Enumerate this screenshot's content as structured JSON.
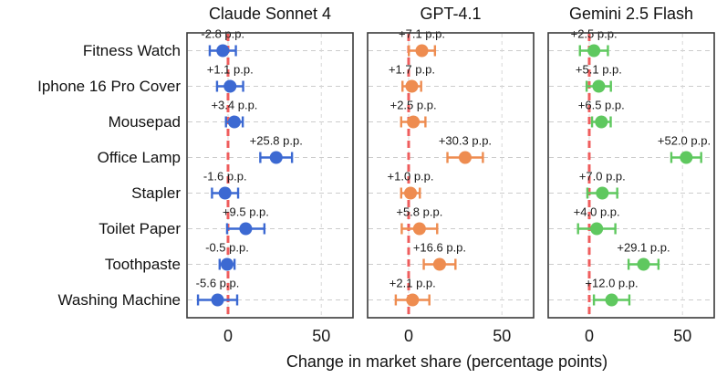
{
  "chart_data": {
    "type": "scatter",
    "subtype": "dot-plot-with-error-bars",
    "orientation": "horizontal",
    "categories": [
      "Fitness Watch",
      "Iphone 16 Pro Cover",
      "Mousepad",
      "Office Lamp",
      "Stapler",
      "Toilet Paper",
      "Toothpaste",
      "Washing Machine"
    ],
    "series": [
      {
        "name": "Claude Sonnet 4",
        "color": "#3c69d2",
        "values": [
          -2.8,
          1.1,
          3.4,
          25.8,
          -1.6,
          9.5,
          -0.5,
          -5.6
        ],
        "errors": [
          7,
          7,
          4.5,
          8.5,
          7,
          10,
          4,
          10.5
        ],
        "point_labels": [
          "-2.8 p.p.",
          "+1.1 p.p.",
          "+3.4 p.p.",
          "+25.8 p.p.",
          "-1.6 p.p.",
          "+9.5 p.p.",
          "-0.5 p.p.",
          "-5.6 p.p."
        ]
      },
      {
        "name": "GPT-4.1",
        "color": "#ee8c50",
        "values": [
          7.1,
          1.7,
          2.5,
          30.3,
          1.0,
          5.8,
          16.6,
          2.1
        ],
        "errors": [
          7,
          5,
          6.5,
          9.5,
          5,
          9.5,
          8.5,
          9
        ],
        "point_labels": [
          "+7.1 p.p.",
          "+1.7 p.p.",
          "+2.5 p.p.",
          "+30.3 p.p.",
          "+1.0 p.p.",
          "+5.8 p.p.",
          "+16.6 p.p.",
          "+2.1 p.p."
        ]
      },
      {
        "name": "Gemini 2.5 Flash",
        "color": "#5fc85f",
        "values": [
          2.5,
          5.1,
          6.5,
          52.0,
          7.0,
          4.0,
          29.1,
          12.0
        ],
        "errors": [
          7.5,
          6.5,
          5,
          8,
          8,
          10,
          8,
          9.5
        ],
        "point_labels": [
          "+2.5 p.p.",
          "+5.1 p.p.",
          "+6.5 p.p.",
          "+52.0 p.p.",
          "+7.0 p.p.",
          "+4.0 p.p.",
          "+29.1 p.p.",
          "+12.0 p.p."
        ]
      }
    ],
    "xlabel": "Change in market share (percentage points)",
    "xticks": [
      0,
      50
    ],
    "xtick_labels": [
      "0",
      "50"
    ],
    "xlim": [
      -22,
      67
    ],
    "refline_x": 0,
    "refline_color": "#ee4444",
    "grid": true,
    "grid_color": "#cccccc",
    "border_color": "#3a3a3a",
    "legend": "none"
  }
}
